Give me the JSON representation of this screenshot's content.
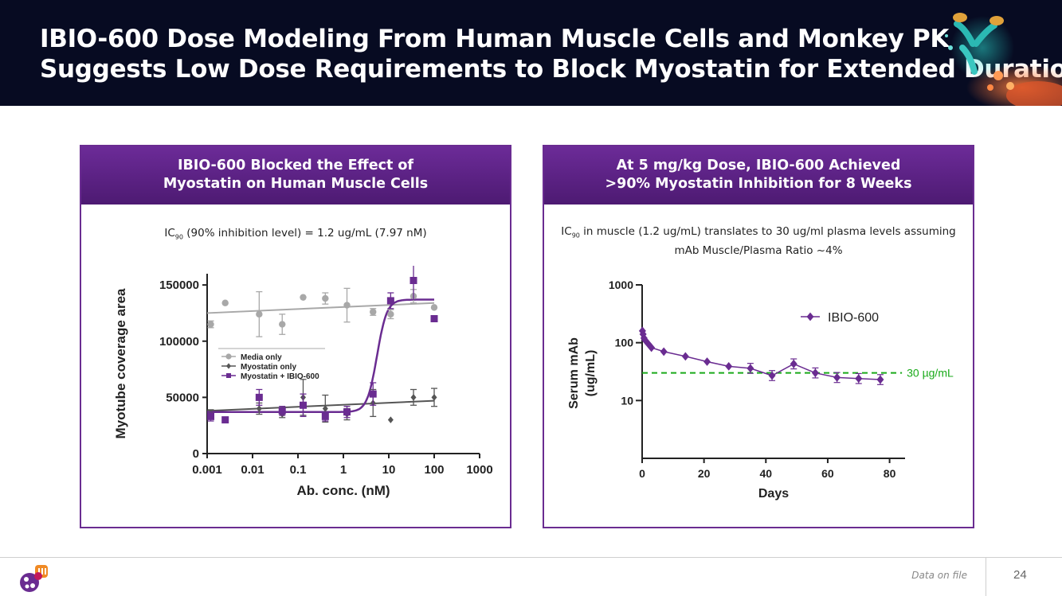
{
  "header": {
    "title_line1": "IBIO-600 Dose Modeling From Human Muscle Cells and Monkey PK",
    "title_line2": "Suggests Low Dose Requirements to Block Myostatin for Extended Durations"
  },
  "left_panel": {
    "title_line1": "IBIO-600  Blocked the Effect of",
    "title_line2": "Myostatin on Human Muscle Cells",
    "note_prefix": "IC",
    "note_sub": "90",
    "note_suffix": " (90% inhibition level) = 1.2 ug/mL (7.97 nM)"
  },
  "right_panel": {
    "title_line1": "At 5 mg/kg Dose, IBIO-600 Achieved",
    "title_line2": ">90% Myostatin Inhibition for 8 Weeks",
    "note_prefix": "IC",
    "note_sub": "90",
    "note_line1_suffix": " in muscle (1.2 ug/mL) translates to 30 ug/ml plasma levels assuming",
    "note_line2": "mAb Muscle/Plasma Ratio ~4%"
  },
  "footer": {
    "footnote": "Data on file",
    "page_number": "24"
  },
  "colors": {
    "header_bg": "#070b22",
    "purple": "#6a2c91",
    "gray_series": "#a8a8a8",
    "dark_series": "#555555",
    "threshold_green": "#1aaa1a"
  },
  "chart_data": [
    {
      "type": "scatter",
      "title": "IBIO-600 Blocked the Effect of Myostatin on Human Muscle Cells",
      "xlabel": "Ab. conc. (nM)",
      "ylabel": "Myotube coverage area",
      "xscale": "log",
      "xlim": [
        0.001,
        1000
      ],
      "ylim": [
        0,
        160000
      ],
      "xticks": [
        "0.001",
        "0.01",
        "0.1",
        "1",
        "10",
        "100",
        "1000"
      ],
      "yticks": [
        "0",
        "50000",
        "100000",
        "150000"
      ],
      "legend_position": "middle-left",
      "series": [
        {
          "name": "Media only",
          "marker": "circle",
          "color": "#a8a8a8",
          "x": [
            0.0012,
            0.0025,
            0.014,
            0.045,
            0.13,
            0.4,
            1.2,
            4.5,
            11,
            35,
            100
          ],
          "y": [
            115000,
            134000,
            124000,
            115000,
            139000,
            138000,
            132000,
            126000,
            124000,
            140000,
            130000
          ],
          "error": [
            3000,
            0,
            20000,
            9000,
            0,
            5000,
            15000,
            3000,
            4000,
            6000,
            0
          ],
          "fit": {
            "x": [
              0.001,
              100
            ],
            "y": [
              125000,
              134000
            ]
          }
        },
        {
          "name": "Myostatin only",
          "marker": "diamond",
          "color": "#555555",
          "x": [
            0.0012,
            0.0025,
            0.014,
            0.045,
            0.13,
            0.4,
            1.2,
            4.5,
            11,
            35,
            100
          ],
          "y": [
            36000,
            30000,
            40000,
            35000,
            50000,
            40000,
            35000,
            45000,
            30000,
            50000,
            50000
          ],
          "error": [
            3000,
            0,
            5000,
            3000,
            16000,
            12000,
            5000,
            12000,
            0,
            7000,
            8000
          ],
          "fit": {
            "x": [
              0.001,
              100
            ],
            "y": [
              38000,
              47000
            ]
          }
        },
        {
          "name": "Myostatin + IBIO-600",
          "marker": "square",
          "color": "#6a2c91",
          "x": [
            0.0012,
            0.0025,
            0.014,
            0.045,
            0.13,
            0.4,
            1.2,
            4.5,
            11,
            35,
            100
          ],
          "y": [
            33000,
            30000,
            50000,
            38000,
            43000,
            33000,
            37000,
            53000,
            136000,
            154000,
            120000
          ],
          "error": [
            4000,
            0,
            7000,
            4000,
            10000,
            4000,
            5000,
            10000,
            7000,
            17000,
            0
          ],
          "fit_sigmoid": {
            "bottom": 37000,
            "top": 137000,
            "ec50": 5.5,
            "hill": 4
          }
        }
      ]
    },
    {
      "type": "line",
      "title": "At 5 mg/kg Dose, IBIO-600 Achieved >90% Myostatin Inhibition for 8 Weeks",
      "xlabel": "Days",
      "ylabel_line1": "Serum mAb",
      "ylabel_line2": "(ug/mL)",
      "yscale": "log",
      "xlim": [
        0,
        85
      ],
      "ylim": [
        1,
        1000
      ],
      "xticks": [
        "0",
        "20",
        "40",
        "60",
        "80"
      ],
      "yticks": [
        "10",
        "100",
        "1000"
      ],
      "legend_position": "top-right",
      "series": [
        {
          "name": "IBIO-600",
          "color": "#6a2c91",
          "x": [
            0.1,
            0.3,
            0.6,
            1,
            2,
            3,
            7,
            14,
            21,
            28,
            35,
            42,
            49,
            56,
            63,
            70,
            77
          ],
          "y": [
            160,
            140,
            120,
            110,
            95,
            82,
            70,
            58,
            47,
            39,
            36,
            27,
            43,
            30,
            25,
            24,
            23
          ]
        }
      ],
      "threshold": {
        "y": 30,
        "label": "30 µg/mL",
        "color": "#1aaa1a",
        "x_end": 84
      }
    }
  ]
}
